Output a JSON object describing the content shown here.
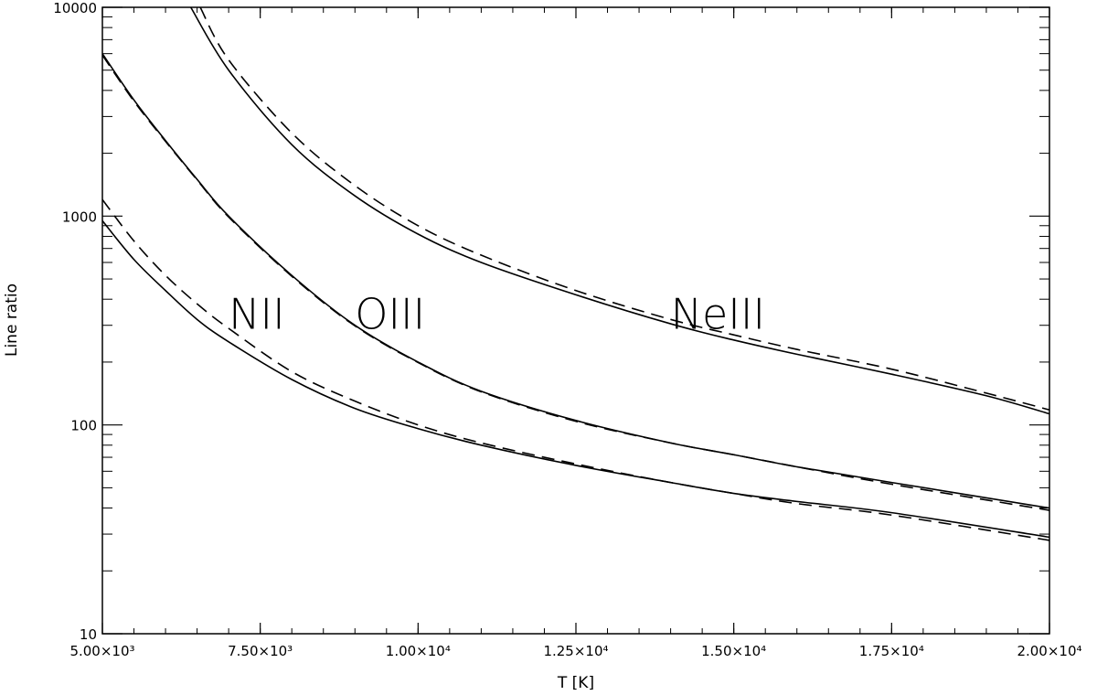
{
  "chart_data": {
    "type": "line",
    "title": "",
    "xlabel": "T [K]",
    "ylabel": "Line ratio",
    "xlim": [
      5000,
      20000
    ],
    "ylim": [
      10,
      10000
    ],
    "yscale": "log",
    "grid": false,
    "x_ticks": [
      {
        "value": 5000,
        "label": "5.00×10³"
      },
      {
        "value": 7500,
        "label": "7.50×10³"
      },
      {
        "value": 10000,
        "label": "1.00×10⁴"
      },
      {
        "value": 12500,
        "label": "1.25×10⁴"
      },
      {
        "value": 15000,
        "label": "1.50×10⁴"
      },
      {
        "value": 17500,
        "label": "1.75×10⁴"
      },
      {
        "value": 20000,
        "label": "2.00×10⁴"
      }
    ],
    "y_ticks": [
      {
        "value": 10,
        "label": "10"
      },
      {
        "value": 100,
        "label": "100"
      },
      {
        "value": 1000,
        "label": "1000"
      },
      {
        "value": 10000,
        "label": "10000"
      }
    ],
    "curve_labels": [
      {
        "text": "NII",
        "x": 7000,
        "y": 340
      },
      {
        "text": "OIII",
        "x": 9000,
        "y": 340
      },
      {
        "text": "NeIII",
        "x": 14000,
        "y": 340
      }
    ],
    "series": [
      {
        "style": "solid",
        "x": [
          6400,
          7000,
          8000,
          9000,
          10000,
          11000,
          12500,
          14000,
          15000,
          16000,
          17500,
          19000,
          20000
        ],
        "y": [
          10000,
          5000,
          2200,
          1250,
          820,
          600,
          420,
          305,
          255,
          218,
          175,
          138,
          113
        ]
      },
      {
        "style": "dashed",
        "x": [
          6550,
          7000,
          8000,
          9000,
          10000,
          11000,
          12500,
          14000,
          15000,
          16000,
          17500,
          19000,
          20000
        ],
        "y": [
          10000,
          5600,
          2500,
          1400,
          900,
          650,
          440,
          320,
          270,
          230,
          185,
          142,
          118
        ]
      },
      {
        "style": "solid",
        "x": [
          5000,
          5500,
          6000,
          6500,
          7000,
          8000,
          9000,
          10000,
          11000,
          12500,
          14000,
          15000,
          16000,
          17500,
          20000
        ],
        "y": [
          6000,
          3600,
          2300,
          1500,
          1000,
          520,
          300,
          200,
          145,
          105,
          82,
          72,
          63,
          53,
          40
        ]
      },
      {
        "style": "dashed",
        "x": [
          5000,
          5500,
          6000,
          6500,
          7000,
          8000,
          9000,
          10000,
          11000,
          12500,
          14000,
          15000,
          16000,
          17500,
          20000
        ],
        "y": [
          5900,
          3550,
          2280,
          1490,
          990,
          515,
          298,
          199,
          144,
          104,
          82,
          72,
          63,
          52,
          39
        ]
      },
      {
        "style": "solid",
        "x": [
          5000,
          5500,
          6000,
          6500,
          7000,
          8000,
          9000,
          10000,
          11000,
          12500,
          14000,
          15000,
          16000,
          17500,
          20000
        ],
        "y": [
          950,
          620,
          440,
          320,
          250,
          165,
          120,
          96,
          80,
          64,
          53,
          47,
          43,
          38,
          29
        ]
      },
      {
        "style": "dashed",
        "x": [
          5000,
          5500,
          6000,
          6500,
          7000,
          8000,
          9000,
          10000,
          11000,
          12500,
          14000,
          15000,
          16000,
          17500,
          20000
        ],
        "y": [
          1200,
          760,
          520,
          380,
          290,
          180,
          130,
          100,
          82,
          65,
          53,
          47,
          42,
          37,
          28
        ]
      }
    ]
  }
}
